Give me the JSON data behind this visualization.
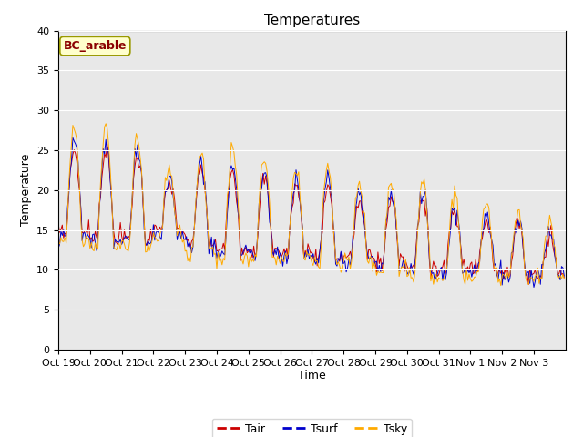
{
  "title": "Temperatures",
  "xlabel": "Time",
  "ylabel": "Temperature",
  "ylim": [
    0,
    40
  ],
  "site_label": "BC_arable",
  "line_colors": {
    "Tair": "#cc0000",
    "Tsurf": "#0000cc",
    "Tsky": "#ffaa00"
  },
  "legend_labels": [
    "Tair",
    "Tsurf",
    "Tsky"
  ],
  "x_tick_labels": [
    "Oct 19",
    "Oct 20",
    "Oct 21",
    "Oct 22",
    "Oct 23",
    "Oct 24",
    "Oct 25",
    "Oct 26",
    "Oct 27",
    "Oct 28",
    "Oct 29",
    "Oct 30",
    "Oct 31",
    "Nov 1",
    "Nov 2",
    "Nov 3"
  ],
  "bg_color": "#e8e8e8",
  "title_fontsize": 11,
  "axis_fontsize": 9,
  "tick_fontsize": 8,
  "legend_fontsize": 9,
  "site_label_fontsize": 9
}
